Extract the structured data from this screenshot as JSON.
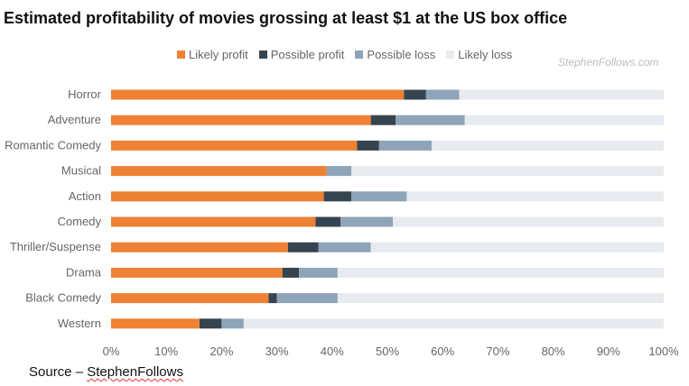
{
  "chart_data": {
    "type": "bar",
    "orientation": "horizontal",
    "stacked": true,
    "title": "Estimated profitability of movies grossing at least $1 at the US box office",
    "categories": [
      "Horror",
      "Adventure",
      "Romantic Comedy",
      "Musical",
      "Action",
      "Comedy",
      "Thriller/Suspense",
      "Drama",
      "Black Comedy",
      "Western"
    ],
    "series": [
      {
        "name": "Likely profit",
        "color": "#ee8133",
        "values": [
          53,
          47,
          44.5,
          39,
          38.5,
          37,
          32,
          31,
          28.5,
          16
        ]
      },
      {
        "name": "Possible profit",
        "color": "#36444f",
        "values": [
          4,
          4.5,
          4,
          0,
          5,
          4.5,
          5.5,
          3,
          1.5,
          4
        ]
      },
      {
        "name": "Possible loss",
        "color": "#8ea4b8",
        "values": [
          6,
          12.5,
          9.5,
          4.5,
          10,
          9.5,
          9.5,
          7,
          11,
          4
        ]
      },
      {
        "name": "Likely loss",
        "color": "#e7eaee",
        "values": [
          37,
          36,
          42,
          56.5,
          46.5,
          49,
          53,
          59,
          59,
          76
        ]
      }
    ],
    "x_ticks": [
      "0%",
      "10%",
      "20%",
      "30%",
      "40%",
      "50%",
      "60%",
      "70%",
      "80%",
      "90%",
      "100%"
    ],
    "xlim": [
      0,
      100
    ],
    "legend_position": "top-center",
    "grid": false
  },
  "watermark": "StephenFollows.com",
  "source": {
    "prefix": "Source – ",
    "link": "StephenFollows"
  }
}
